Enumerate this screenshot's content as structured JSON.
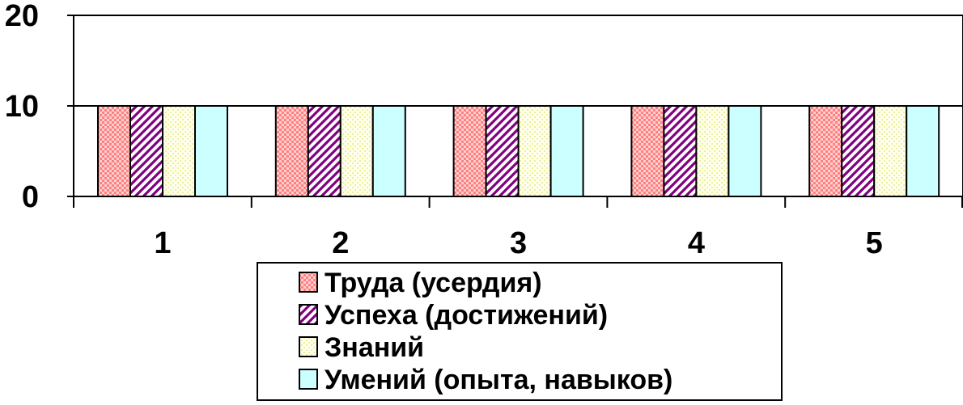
{
  "chart_data": {
    "type": "bar",
    "categories": [
      "1",
      "2",
      "3",
      "4",
      "5"
    ],
    "series": [
      {
        "name": "Труда (усердия)",
        "values": [
          10,
          10,
          10,
          10,
          10
        ],
        "color": "#ff9999",
        "pattern": "dots"
      },
      {
        "name": "Успеха (достижений)",
        "values": [
          10,
          10,
          10,
          10,
          10
        ],
        "color": "#800080",
        "pattern": "diagonal"
      },
      {
        "name": "Знаний",
        "values": [
          10,
          10,
          10,
          10,
          10
        ],
        "color": "#ffffcc",
        "pattern": "dots-light"
      },
      {
        "name": "Умений (опыта, навыков)",
        "values": [
          10,
          10,
          10,
          10,
          10
        ],
        "color": "#ccffff",
        "pattern": "solid"
      }
    ],
    "yticks": [
      "0",
      "10",
      "20"
    ],
    "ylim": [
      0,
      20
    ],
    "grid": true,
    "legend": "bottom"
  }
}
